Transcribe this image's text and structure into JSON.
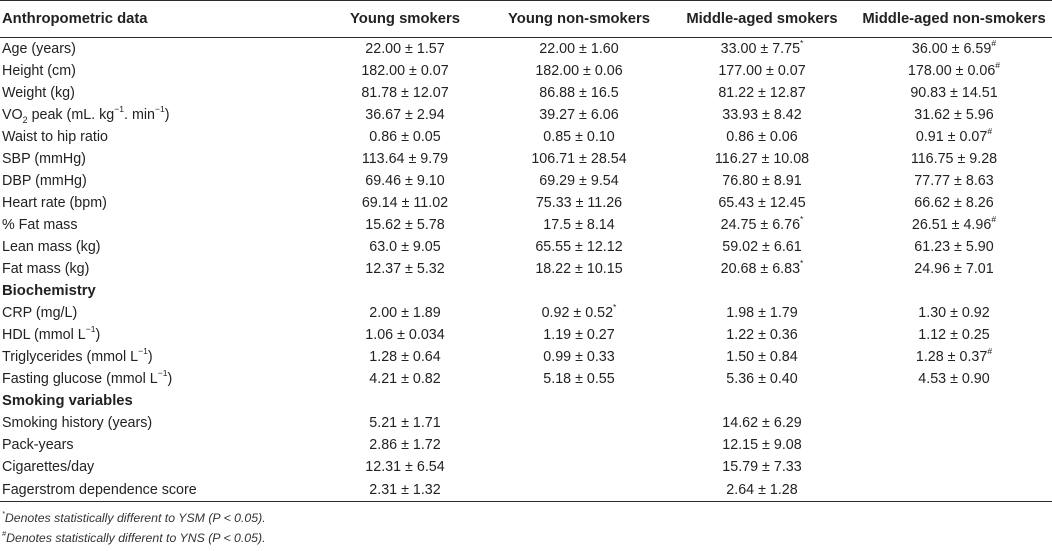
{
  "header": {
    "col0": "Anthropometric data",
    "col1": "Young smokers",
    "col2": "Young non-smokers",
    "col3": "Middle-aged smokers",
    "col4": "Middle-aged non-smokers"
  },
  "anthropometric_rows": [
    {
      "label": "Age (years)",
      "ys": "22.00 ± 1.57",
      "yns": "22.00 ± 1.60",
      "ms": "33.00 ± 7.75",
      "ms_mark": "*",
      "mns": "36.00 ± 6.59",
      "mns_mark": "#"
    },
    {
      "label": "Height (cm)",
      "ys": "182.00 ± 0.07",
      "yns": "182.00 ± 0.06",
      "ms": "177.00 ± 0.07",
      "ms_mark": "",
      "mns": "178.00 ± 0.06",
      "mns_mark": "#"
    },
    {
      "label": "Weight (kg)",
      "ys": "81.78 ± 12.07",
      "yns": "86.88 ± 16.5",
      "ms": "81.22 ± 12.87",
      "ms_mark": "",
      "mns": "90.83 ± 14.51",
      "mns_mark": ""
    },
    {
      "label_pre": "VO",
      "label_sub": "2",
      "label_post": " peak (mL. kg",
      "label_sup": "−1",
      "label_post2": ". min",
      "label_sup2": "−1",
      "label_end": ")",
      "ys": "36.67 ± 2.94",
      "yns": "39.27 ± 6.06",
      "ms": "33.93 ± 8.42",
      "ms_mark": "",
      "mns": "31.62 ± 5.96",
      "mns_mark": ""
    },
    {
      "label": "Waist to hip ratio",
      "ys": "0.86 ± 0.05",
      "yns": "0.85 ± 0.10",
      "ms": "0.86 ± 0.06",
      "ms_mark": "",
      "mns": "0.91 ± 0.07",
      "mns_mark": "#"
    },
    {
      "label": "SBP (mmHg)",
      "ys": "113.64 ± 9.79",
      "yns": "106.71 ± 28.54",
      "ms": "116.27 ± 10.08",
      "ms_mark": "",
      "mns": "116.75 ± 9.28",
      "mns_mark": ""
    },
    {
      "label": "DBP (mmHg)",
      "ys": "69.46 ± 9.10",
      "yns": "69.29 ± 9.54",
      "ms": "76.80 ± 8.91",
      "ms_mark": "",
      "mns": "77.77 ± 8.63",
      "mns_mark": ""
    },
    {
      "label": "Heart rate (bpm)",
      "ys": "69.14 ± 11.02",
      "yns": "75.33 ± 11.26",
      "ms": "65.43 ± 12.45",
      "ms_mark": "",
      "mns": "66.62 ± 8.26",
      "mns_mark": ""
    },
    {
      "label": "% Fat mass",
      "ys": "15.62 ± 5.78",
      "yns": "17.5 ± 8.14",
      "ms": "24.75 ± 6.76",
      "ms_mark": "*",
      "mns": "26.51 ± 4.96",
      "mns_mark": "#"
    },
    {
      "label": "Lean mass (kg)",
      "ys": "63.0 ± 9.05",
      "yns": "65.55 ± 12.12",
      "ms": "59.02 ± 6.61",
      "ms_mark": "",
      "mns": "61.23 ± 5.90",
      "mns_mark": ""
    },
    {
      "label": "Fat mass (kg)",
      "ys": "12.37 ± 5.32",
      "yns": "18.22 ± 10.15",
      "ms": "20.68 ± 6.83",
      "ms_mark": "*",
      "mns": "24.96 ± 7.01",
      "mns_mark": ""
    }
  ],
  "biochemistry_title": "Biochemistry",
  "biochemistry_rows": [
    {
      "label": "CRP (mg/L)",
      "ys": "2.00 ± 1.89",
      "yns": "0.92 ± 0.52",
      "yns_mark": "*",
      "ms": "1.98 ± 1.79",
      "mns": "1.30 ± 0.92",
      "mns_mark": ""
    },
    {
      "label": "HDL (mmol L",
      "label_sup": "−1",
      "label_end": ")",
      "ys": "1.06 ± 0.034",
      "yns": "1.19 ± 0.27",
      "yns_mark": "",
      "ms": "1.22 ± 0.36",
      "mns": "1.12 ± 0.25",
      "mns_mark": ""
    },
    {
      "label": "Triglycerides (mmol L",
      "label_sup": "−1",
      "label_end": ")",
      "ys": "1.28 ± 0.64",
      "yns": "0.99 ± 0.33",
      "yns_mark": "",
      "ms": "1.50 ± 0.84",
      "mns": "1.28 ± 0.37",
      "mns_mark": "#"
    },
    {
      "label": "Fasting glucose (mmol L",
      "label_sup": "−1",
      "label_end": ")",
      "ys": "4.21 ± 0.82",
      "yns": "5.18 ± 0.55",
      "yns_mark": "",
      "ms": "5.36 ± 0.40",
      "mns": "4.53 ± 0.90",
      "mns_mark": ""
    }
  ],
  "smoking_title": "Smoking variables",
  "smoking_rows": [
    {
      "label": "Smoking history (years)",
      "ys": "5.21 ± 1.71",
      "ms": "14.62 ± 6.29"
    },
    {
      "label": "Pack-years",
      "ys": "2.86 ± 1.72",
      "ms": "12.15 ± 9.08"
    },
    {
      "label": "Cigarettes/day",
      "ys": "12.31 ± 6.54",
      "ms": "15.79 ± 7.33"
    },
    {
      "label": "Fagerstrom dependence score",
      "ys": "2.31 ± 1.32",
      "ms": "2.64 ± 1.28"
    }
  ],
  "footnotes": {
    "f1_mark": "*",
    "f1_text": "Denotes statistically different to YSM (P < 0.05).",
    "f2_mark": "#",
    "f2_text": "Denotes statistically different to YNS (P < 0.05)."
  }
}
